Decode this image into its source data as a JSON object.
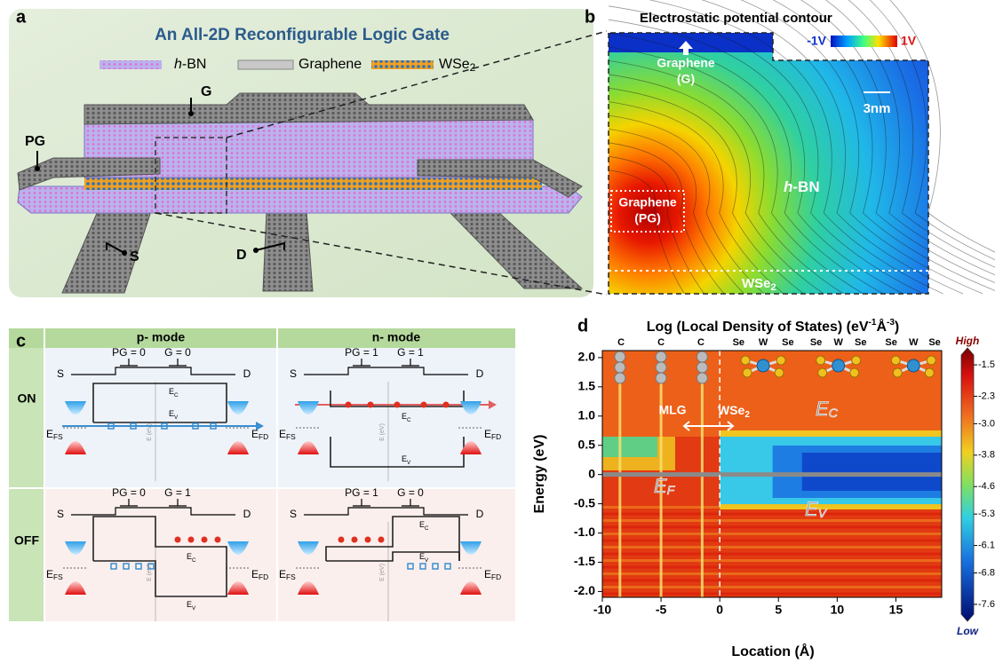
{
  "panel_a": {
    "letter": "a",
    "title": "An All-2D Reconfigurable Logic Gate",
    "legend": {
      "hbn": {
        "italic": "h",
        "rest": "-BN"
      },
      "graphene": "Graphene",
      "wse2": {
        "text": "WSe",
        "sub": "2"
      }
    },
    "labels": {
      "g": "G",
      "pg": "PG",
      "s": "S",
      "d": "D"
    }
  },
  "panel_b": {
    "letter": "b",
    "title": "Electrostatic potential contour",
    "colorbar": {
      "low": "-1V",
      "high": "1V"
    },
    "gate_label": [
      "Graphene",
      "(G)"
    ],
    "scale": "3nm",
    "hbn": {
      "italic": "h",
      "rest": "-BN"
    },
    "pg_label": [
      "Graphene",
      "(PG)"
    ],
    "wse2": {
      "text": "WSe",
      "sub": "2"
    }
  },
  "panel_c": {
    "letter": "c",
    "columns": [
      "p- mode",
      "n- mode"
    ],
    "rows": [
      "ON",
      "OFF"
    ],
    "cells": [
      [
        {
          "pg": "PG = 0",
          "g": "G = 0",
          "s": "S",
          "d": "D",
          "ec": {
            "text": "E",
            "sub": "C"
          },
          "ev": {
            "text": "E",
            "sub": "V"
          },
          "efs": {
            "text": "E",
            "sub": "FS"
          },
          "efd": {
            "text": "E",
            "sub": "FD"
          },
          "axis": "E (eV)"
        },
        {
          "pg": "PG = 1",
          "g": "G = 1",
          "s": "S",
          "d": "D",
          "ec": {
            "text": "E",
            "sub": "C"
          },
          "ev": {
            "text": "E",
            "sub": "V"
          },
          "efs": {
            "text": "E",
            "sub": "FS"
          },
          "efd": {
            "text": "E",
            "sub": "FD"
          },
          "axis": "E (eV)"
        }
      ],
      [
        {
          "pg": "PG = 0",
          "g": "G = 1",
          "s": "S",
          "d": "D",
          "ec": {
            "text": "E",
            "sub": "C"
          },
          "ev": {
            "text": "E",
            "sub": "V"
          },
          "efs": {
            "text": "E",
            "sub": "FS"
          },
          "efd": {
            "text": "E",
            "sub": "FD"
          },
          "axis": "E (eV)"
        },
        {
          "pg": "PG = 1",
          "g": "G = 0",
          "s": "S",
          "d": "D",
          "ec": {
            "text": "E",
            "sub": "C"
          },
          "ev": {
            "text": "E",
            "sub": "V"
          },
          "efs": {
            "text": "E",
            "sub": "FS"
          },
          "efd": {
            "text": "E",
            "sub": "FD"
          },
          "axis": "E (eV)"
        }
      ]
    ]
  },
  "chart_data": {
    "type": "heatmap",
    "letter": "d",
    "title": {
      "pre": "Log (Local Density of States) (eV",
      "sup1": "-1",
      "mid": "Å",
      "sup2": "-3",
      "post": ")"
    },
    "xlabel": "Location (Å)",
    "ylabel": "Energy (eV)",
    "xlim": [
      -10,
      18.9
    ],
    "xticks": [
      -10,
      -5,
      0,
      5,
      10,
      15
    ],
    "ylim": [
      -2.1,
      2.12
    ],
    "yticks": [
      {
        "value": 2,
        "label": "2.0"
      },
      1.5,
      {
        "value": 1,
        "label": "1.0"
      },
      0.5,
      0,
      -0.5,
      {
        "value": -1,
        "label": "-1.0"
      },
      -1.5,
      {
        "value": -2,
        "label": "-2.0"
      }
    ],
    "colorbar": {
      "lim": [
        -7.85,
        -1.25
      ],
      "ticks": [
        -1.5,
        -2.3,
        {
          "value": -3,
          "label": "-3.0"
        },
        -3.8,
        -4.6,
        -5.3,
        -6.1,
        -6.8,
        -7.6
      ],
      "high": "High",
      "low": "Low"
    },
    "annotations": {
      "atoms": [
        "C",
        "C",
        "C",
        "Se",
        "W",
        "Se",
        "Se",
        "W",
        "Se",
        "Se",
        "W",
        "Se"
      ],
      "mlg": "MLG",
      "wse2": {
        "text": "WSe",
        "sub": "2"
      },
      "ec": {
        "text": "E",
        "sub": "C"
      },
      "ef": {
        "text": "E",
        "sub": "F"
      },
      "ev": {
        "text": "E",
        "sub": "V"
      }
    }
  }
}
